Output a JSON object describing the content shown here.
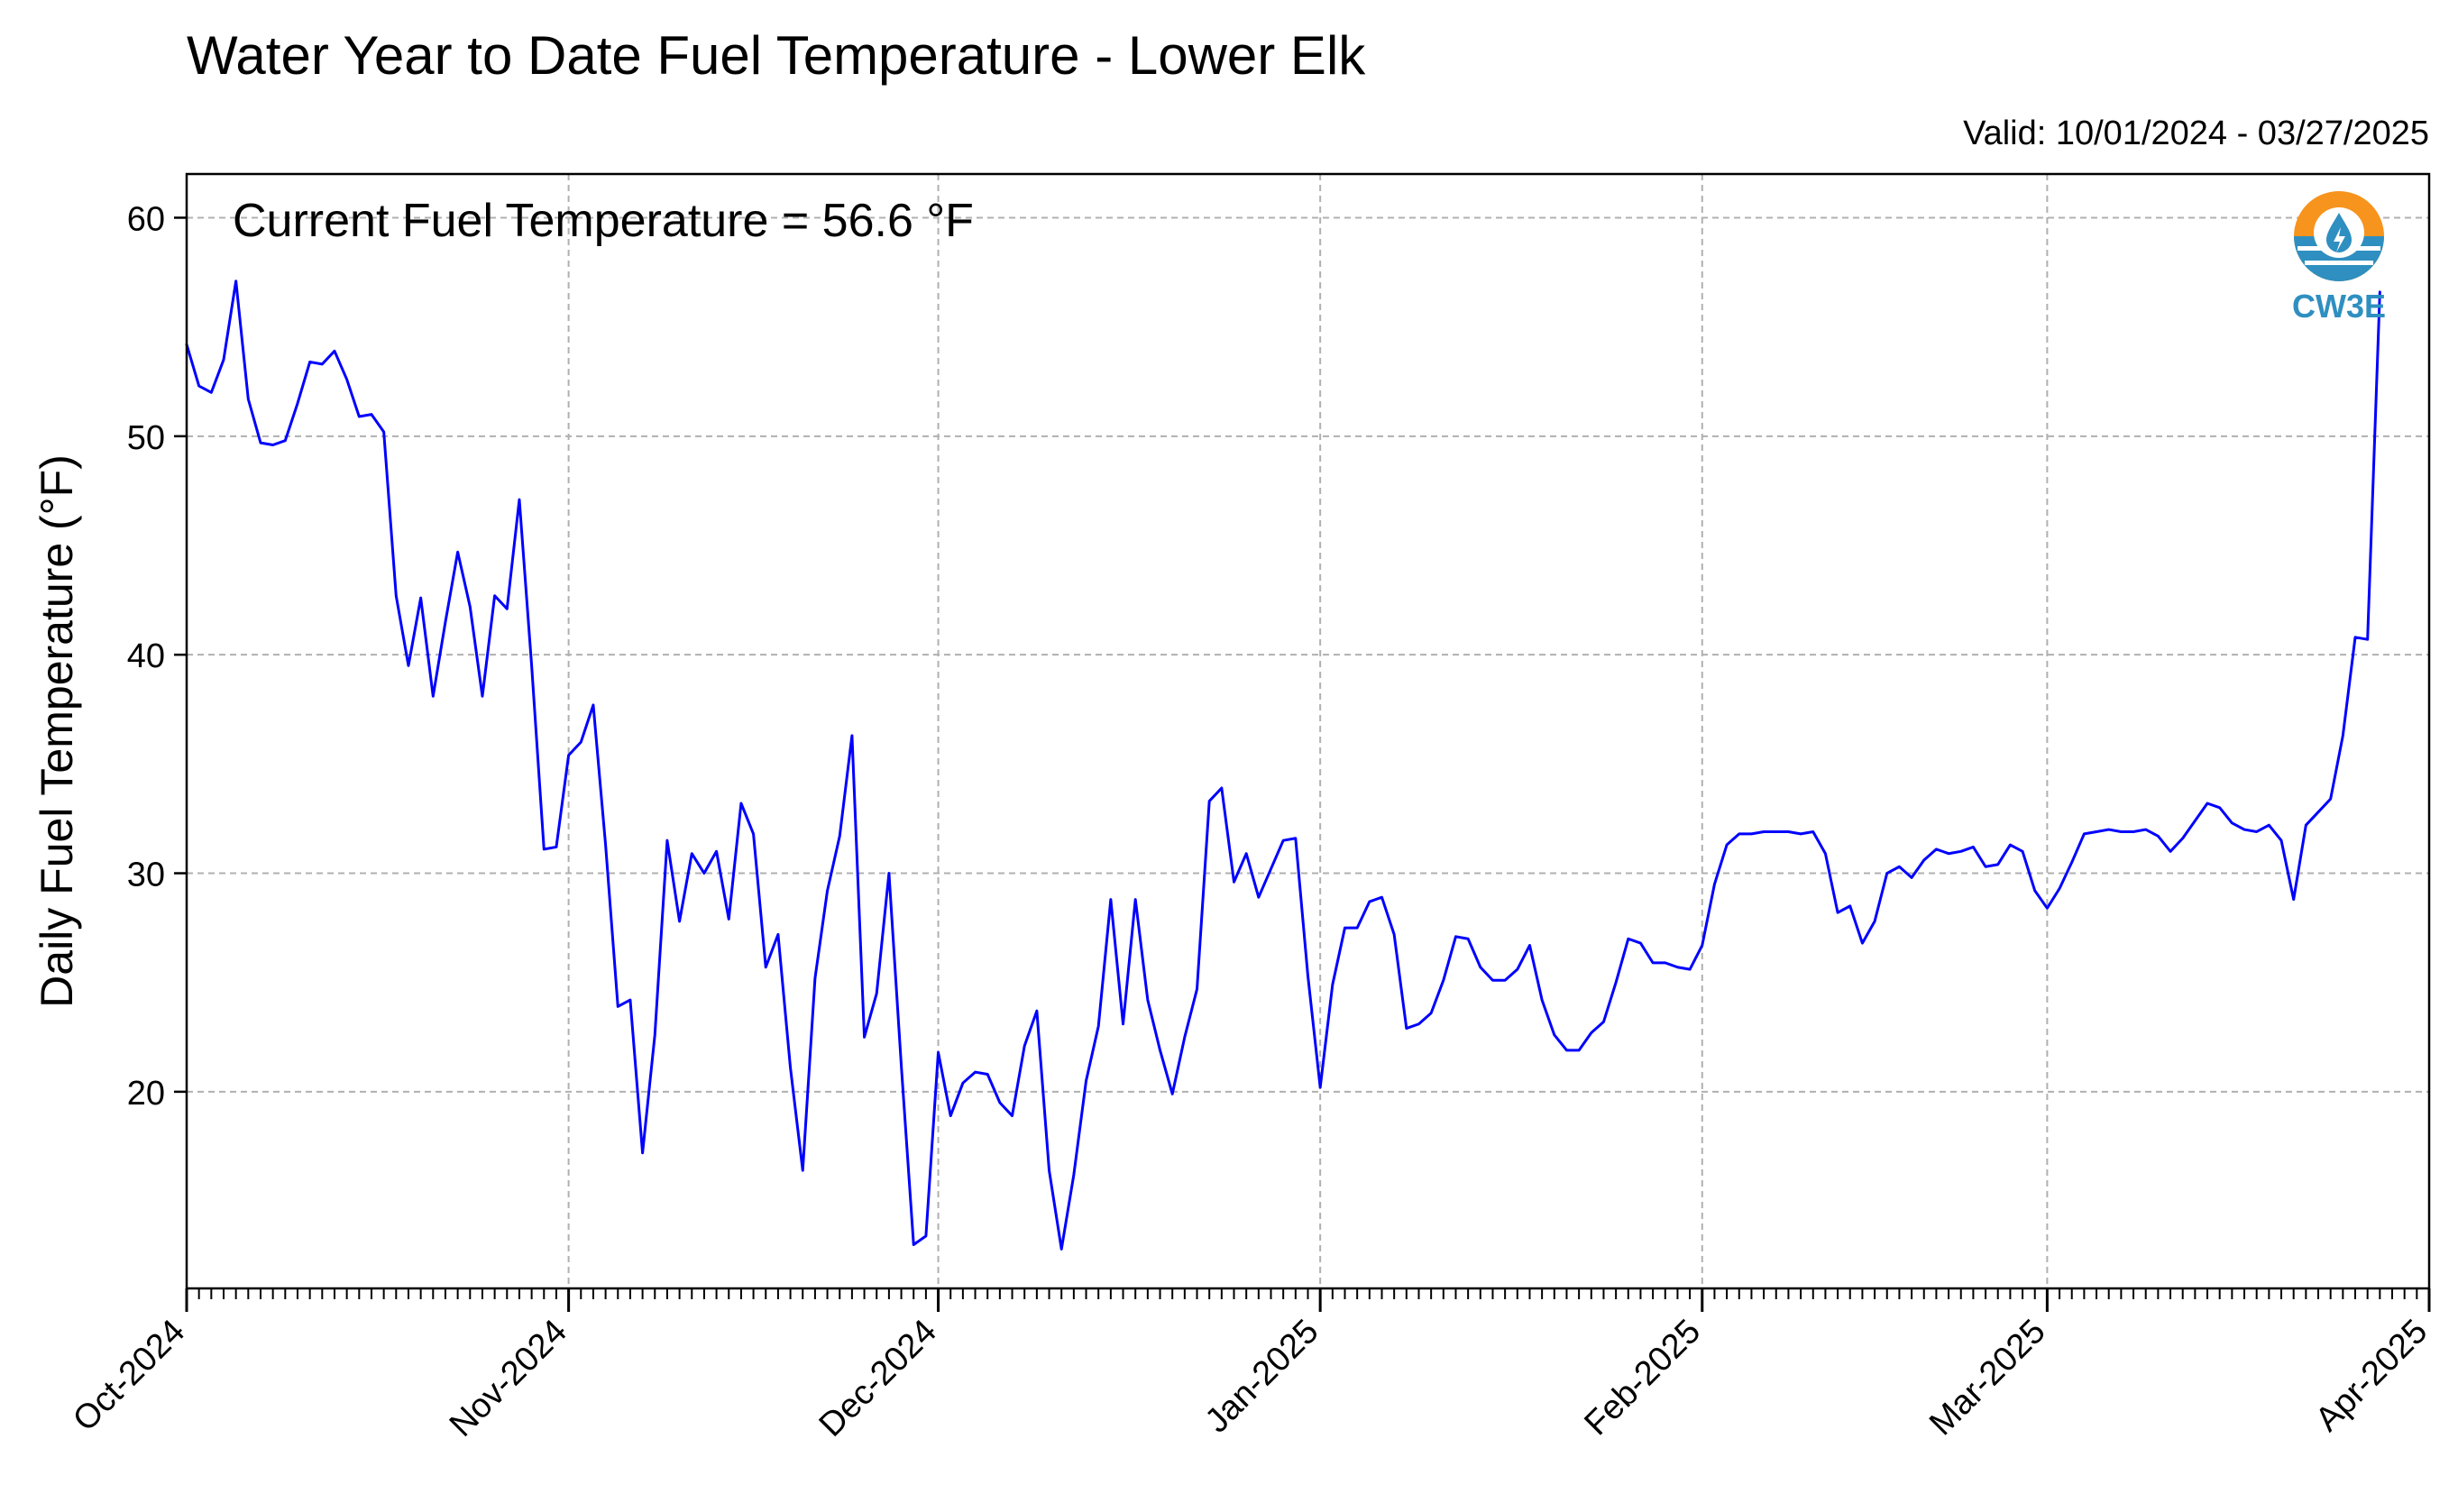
{
  "title": "Water Year to Date Fuel Temperature - Lower Elk",
  "valid_text": "Valid: 10/01/2024 - 03/27/2025",
  "annotation": "Current Fuel Temperature = 56.6 °F",
  "logo_text": "CW3E",
  "colors": {
    "line": "#0000ff",
    "grid": "#b0b0b0",
    "logo_orange": "#f7941d",
    "logo_blue": "#2e8fc0"
  },
  "chart_data": {
    "type": "line",
    "title": "Water Year to Date Fuel Temperature - Lower Elk",
    "xlabel": "",
    "ylabel": "Daily Fuel Temperature (°F)",
    "xlim": [
      "2024-10-01",
      "2025-04-01"
    ],
    "ylim": [
      11,
      62
    ],
    "yticks": [
      20,
      30,
      40,
      50,
      60
    ],
    "yticklabels": [
      "20",
      "30",
      "40",
      "50",
      "60"
    ],
    "xticks": [
      "2024-10-01",
      "2024-11-01",
      "2024-12-01",
      "2025-01-01",
      "2025-02-01",
      "2025-03-01",
      "2025-04-01"
    ],
    "xticklabels": [
      "Oct-2024",
      "Nov-2024",
      "Dec-2024",
      "Jan-2025",
      "Feb-2025",
      "Mar-2025",
      "Apr-2025"
    ],
    "grid": true,
    "start_date": "2024-10-01",
    "series": [
      {
        "values": [
          54.2,
          52.3,
          52.0,
          53.5,
          57.1,
          51.7,
          49.7,
          49.6,
          49.8,
          51.5,
          53.4,
          53.3,
          53.9,
          52.6,
          50.9,
          51.0,
          50.2,
          42.7,
          39.5,
          42.6,
          38.1,
          41.5,
          44.7,
          42.2,
          38.1,
          42.7,
          42.1,
          47.1,
          39.5,
          31.1,
          31.2,
          35.4,
          36.0,
          37.7,
          31.3,
          23.9,
          24.2,
          17.2,
          22.6,
          31.5,
          27.8,
          30.9,
          30.0,
          31.0,
          27.9,
          33.2,
          31.8,
          25.7,
          27.2,
          21.1,
          16.4,
          25.2,
          29.2,
          31.7,
          36.3,
          22.5,
          24.5,
          30.0,
          21.2,
          13.0,
          13.4,
          21.8,
          18.9,
          20.4,
          20.9,
          20.8,
          19.5,
          18.9,
          22.1,
          23.7,
          16.4,
          12.8,
          16.2,
          20.5,
          23.0,
          28.8,
          23.1,
          28.8,
          24.2,
          21.9,
          19.9,
          22.5,
          24.7,
          33.3,
          33.9,
          29.6,
          30.9,
          28.9,
          30.2,
          31.5,
          31.6,
          25.3,
          20.2,
          24.9,
          27.5,
          27.5,
          28.7,
          28.9,
          27.2,
          22.9,
          23.1,
          23.6,
          25.1,
          27.1,
          27.0,
          25.7,
          25.1,
          25.1,
          25.6,
          26.7,
          24.2,
          22.6,
          21.9,
          21.9,
          22.7,
          23.2,
          25.0,
          27.0,
          26.8,
          25.9,
          25.9,
          25.7,
          25.6,
          26.7,
          29.5,
          31.3,
          31.8,
          31.8,
          31.9,
          31.9,
          31.9,
          31.8,
          31.9,
          30.9,
          28.2,
          28.5,
          26.8,
          27.8,
          30.0,
          30.3,
          29.8,
          30.6,
          31.1,
          30.9,
          31.0,
          31.2,
          30.3,
          30.4,
          31.3,
          31.0,
          29.2,
          28.4,
          29.3,
          30.5,
          31.8,
          31.9,
          32.0,
          31.9,
          31.9,
          32.0,
          31.7,
          31.0,
          31.6,
          32.4,
          33.2,
          33.0,
          32.3,
          32.0,
          31.9,
          32.2,
          31.5,
          28.8,
          32.2,
          32.8,
          33.4,
          36.3,
          40.8,
          40.7,
          56.6
        ]
      }
    ]
  }
}
